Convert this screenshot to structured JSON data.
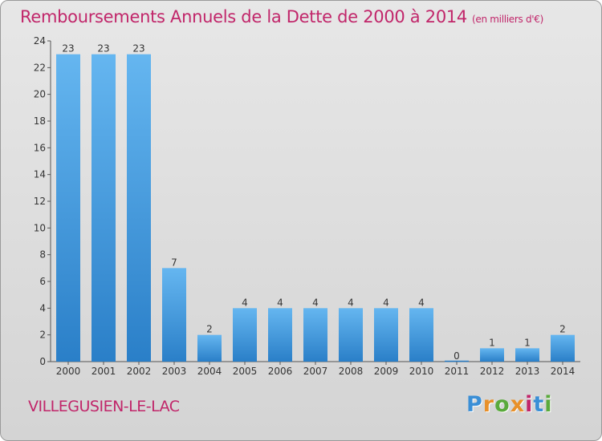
{
  "title": "Remboursements Annuels de la Dette de 2000 à 2014",
  "unit_note": "(en milliers d'€)",
  "place": "VILLEGUSIEN-LE-LAC",
  "logo": {
    "text": "Proxiti",
    "letter_colors": [
      "#3b8fd6",
      "#e8902a",
      "#5aaa3c",
      "#e8902a",
      "#c1266a",
      "#3b8fd6",
      "#5aaa3c"
    ]
  },
  "colors": {
    "title": "#c1266a",
    "bar_top": "#65b6f0",
    "bar_bottom": "#2a7fc8",
    "axis": "#555555",
    "text": "#333333"
  },
  "chart_data": {
    "type": "bar",
    "title": "Remboursements Annuels de la Dette de 2000 à 2014",
    "xlabel": "",
    "ylabel": "",
    "ylim": [
      0,
      24
    ],
    "yticks": [
      0,
      2,
      4,
      6,
      8,
      10,
      12,
      14,
      16,
      18,
      20,
      22,
      24
    ],
    "grid": false,
    "categories": [
      "2000",
      "2001",
      "2002",
      "2003",
      "2004",
      "2005",
      "2006",
      "2007",
      "2008",
      "2009",
      "2010",
      "2011",
      "2012",
      "2013",
      "2014"
    ],
    "values": [
      23,
      23,
      23,
      7,
      2,
      4,
      4,
      4,
      4,
      4,
      4,
      0,
      1,
      1,
      2
    ]
  }
}
